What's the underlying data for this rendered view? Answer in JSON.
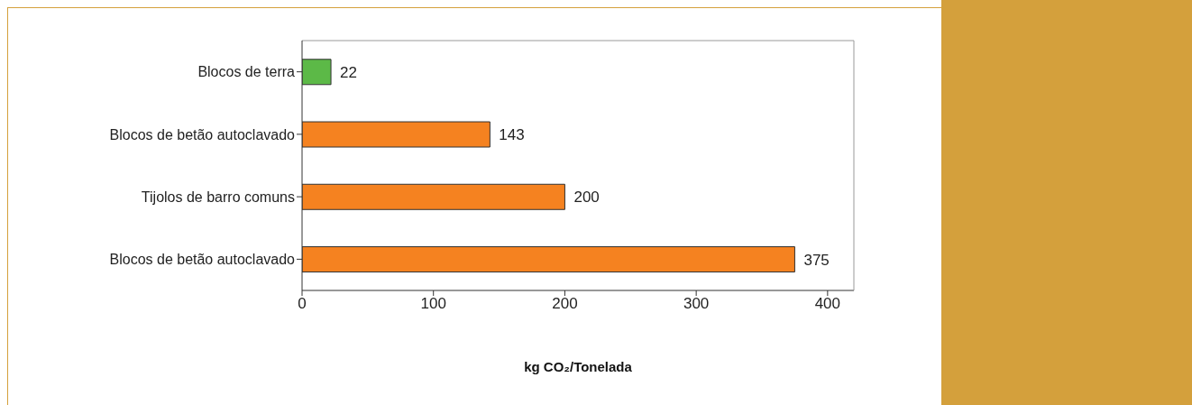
{
  "chart_data": {
    "type": "bar",
    "orientation": "horizontal",
    "xlabel": "kg CO₂/Tonelada",
    "categories": [
      "Blocos de terra",
      "Blocos de betão autoclavado",
      "Tijolos de barro comuns",
      "Blocos de betão autoclavado"
    ],
    "values": [
      22,
      143,
      200,
      375
    ],
    "colors": [
      "#5cb947",
      "#f58220",
      "#f58220",
      "#f58220"
    ],
    "xlim": [
      0,
      420
    ],
    "xticks": [
      0,
      100,
      200,
      300,
      400
    ],
    "data_labels": true
  }
}
